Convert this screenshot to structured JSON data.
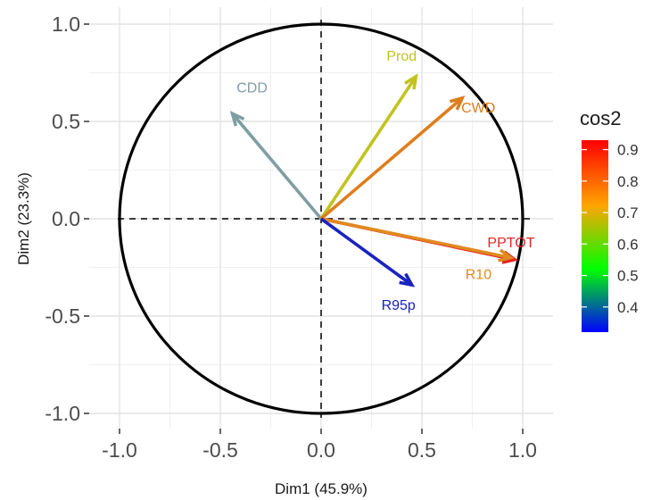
{
  "chart_data": {
    "type": "scatter",
    "subtype": "pca-correlation-circle",
    "xlabel": "Dim1 (45.9%)",
    "ylabel": "Dim2 (23.3%)",
    "xlim": [
      -1.0,
      1.0
    ],
    "ylim": [
      -1.0,
      1.0
    ],
    "x_ticks": [
      "-1.0",
      "-0.5",
      "0.0",
      "0.5",
      "1.0"
    ],
    "y_ticks": [
      "-1.0",
      "-0.5",
      "0.0",
      "0.5",
      "1.0"
    ],
    "grid": true,
    "unit_circle": true,
    "zero_lines": "dashed",
    "variables": [
      {
        "name": "CDD",
        "x": -0.44,
        "y": 0.54,
        "cos2": 0.48,
        "color": "#7f9ea2"
      },
      {
        "name": "Prod",
        "x": 0.47,
        "y": 0.73,
        "cos2": 0.76,
        "color": "#c2c31f"
      },
      {
        "name": "CWD",
        "x": 0.7,
        "y": 0.62,
        "cos2": 0.85,
        "color": "#dd7e1c"
      },
      {
        "name": "PPTOT",
        "x": 0.96,
        "y": -0.21,
        "cos2": 0.93,
        "color": "#e52420"
      },
      {
        "name": "R10",
        "x": 0.94,
        "y": -0.2,
        "cos2": 0.87,
        "color": "#e08a1f"
      },
      {
        "name": "R95p",
        "x": 0.45,
        "y": -0.34,
        "cos2": 0.32,
        "color": "#1a22c0"
      }
    ],
    "legend": {
      "title": "cos2",
      "placement": "right",
      "ticks": [
        "0.4",
        "0.5",
        "0.6",
        "0.7",
        "0.8",
        "0.9"
      ],
      "tick_values": [
        0.4,
        0.5,
        0.6,
        0.7,
        0.8,
        0.9
      ],
      "range": [
        0.32,
        0.93
      ],
      "gradient": [
        "#0000ff",
        "#00ff00",
        "#ffa500",
        "#ff0000"
      ]
    }
  }
}
